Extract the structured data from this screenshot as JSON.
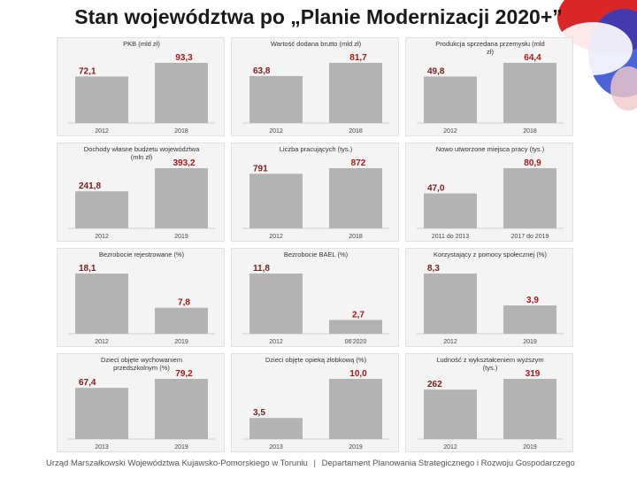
{
  "title": "Stan województwa po „Planie Modernizacji 2020+”",
  "footer": {
    "institution": "Urząd Marszałkowski Województwa Kujawsko-Pomorskiego w Toruniu",
    "separator": "|",
    "department": "Departament Planowania Strategicznego i Rozwoju Gospodarczego"
  },
  "colors": {
    "bar": "#b3b3b3",
    "first_value": "#7b1c1c",
    "second_value": "#b01515",
    "panel_bg": "#f4f4f4"
  },
  "chart_data": [
    {
      "type": "bar",
      "title": "PKB (mld zł)",
      "categories": [
        "2012",
        "2018"
      ],
      "values": [
        72.1,
        93.3
      ],
      "value_labels": [
        "72,1",
        "93,3"
      ]
    },
    {
      "type": "bar",
      "title": "Wartość dodana brutto (mld zł)",
      "categories": [
        "2012",
        "2018"
      ],
      "values": [
        63.8,
        81.7
      ],
      "value_labels": [
        "63,8",
        "81,7"
      ]
    },
    {
      "type": "bar",
      "title": "Produkcja sprzedana przemysłu (mld zł)",
      "categories": [
        "2012",
        "2018"
      ],
      "values": [
        49.8,
        64.4
      ],
      "value_labels": [
        "49,8",
        "64,4"
      ]
    },
    {
      "type": "bar",
      "title": "Dochody własne budżetu województwa (mln zł)",
      "categories": [
        "2012",
        "2019"
      ],
      "values": [
        241.8,
        393.2
      ],
      "value_labels": [
        "241,8",
        "393,2"
      ]
    },
    {
      "type": "bar",
      "title": "Liczba pracujących (tys.)",
      "categories": [
        "2012",
        "2018"
      ],
      "values": [
        791,
        872
      ],
      "value_labels": [
        "791",
        "872"
      ]
    },
    {
      "type": "bar",
      "title": "Nowo utworzone miejsca pracy (tys.)",
      "categories": [
        "2011 do 2013",
        "2017 do 2019"
      ],
      "values": [
        47.0,
        80.9
      ],
      "value_labels": [
        "47,0",
        "80,9"
      ]
    },
    {
      "type": "bar",
      "title": "Bezrobocie rejestrowane (%)",
      "categories": [
        "2012",
        "2019"
      ],
      "values": [
        18.1,
        7.8
      ],
      "value_labels": [
        "18,1",
        "7,8"
      ]
    },
    {
      "type": "bar",
      "title": "Bezrobocie BAEL (%)",
      "categories": [
        "2012",
        "06'2020"
      ],
      "values": [
        11.8,
        2.7
      ],
      "value_labels": [
        "11,8",
        "2,7"
      ]
    },
    {
      "type": "bar",
      "title": "Korzystający z pomocy społecznej (%)",
      "categories": [
        "2012",
        "2019"
      ],
      "values": [
        8.3,
        3.9
      ],
      "value_labels": [
        "8,3",
        "3,9"
      ]
    },
    {
      "type": "bar",
      "title": "Dzieci objęte wychowaniem przedszkolnym (%)",
      "categories": [
        "2013",
        "2019"
      ],
      "values": [
        67.4,
        79.2
      ],
      "value_labels": [
        "67,4",
        "79,2"
      ]
    },
    {
      "type": "bar",
      "title": "Dzieci objęte opieką żłobkową (%)",
      "categories": [
        "2013",
        "2019"
      ],
      "values": [
        3.5,
        10.0
      ],
      "value_labels": [
        "3,5",
        "10,0"
      ]
    },
    {
      "type": "bar",
      "title": "Ludność z wykształceniem wyższym (tys.)",
      "categories": [
        "2012",
        "2019"
      ],
      "values": [
        262,
        319
      ],
      "value_labels": [
        "262",
        "319"
      ]
    }
  ]
}
